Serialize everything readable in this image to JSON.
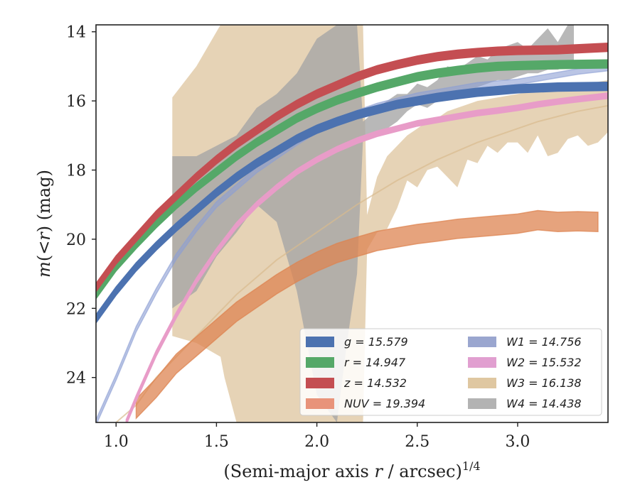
{
  "chart_data": {
    "type": "line",
    "xlabel": "(Semi-major axis r / arcsec)^1/4",
    "ylabel": "m(< r) (mag)",
    "xlim": [
      0.9,
      3.45
    ],
    "ylim": [
      25.3,
      13.8
    ],
    "y_inverted": true,
    "xticks": [
      1.0,
      1.5,
      2.0,
      2.5,
      3.0
    ],
    "xtick_labels": [
      "1.0",
      "1.5",
      "2.0",
      "2.5",
      "3.0"
    ],
    "yticks": [
      14,
      16,
      18,
      20,
      22,
      24
    ],
    "ytick_labels": [
      "14",
      "16",
      "18",
      "20",
      "22",
      "24"
    ],
    "grid": false,
    "legend_position": "bottom-right",
    "series": [
      {
        "name": "g = 15.579",
        "color": "#4c72b0",
        "total": 15.579,
        "x_start": 0.9,
        "x_end": 3.45,
        "alpha": 1.0,
        "band": 0.12,
        "x": [
          0.9,
          1.0,
          1.1,
          1.2,
          1.3,
          1.4,
          1.5,
          1.6,
          1.7,
          1.8,
          1.9,
          2.0,
          2.1,
          2.2,
          2.3,
          2.4,
          2.5,
          2.6,
          2.7,
          2.8,
          2.9,
          3.0,
          3.2,
          3.45
        ],
        "y": [
          22.3,
          21.5,
          20.8,
          20.2,
          19.65,
          19.15,
          18.65,
          18.2,
          17.8,
          17.45,
          17.1,
          16.82,
          16.6,
          16.4,
          16.25,
          16.1,
          16.0,
          15.9,
          15.82,
          15.75,
          15.7,
          15.65,
          15.6,
          15.58
        ]
      },
      {
        "name": "r = 14.947",
        "color": "#55a868",
        "total": 14.947,
        "x_start": 0.9,
        "x_end": 3.45,
        "alpha": 1.0,
        "band": 0.12,
        "x": [
          0.9,
          1.0,
          1.1,
          1.2,
          1.3,
          1.4,
          1.5,
          1.6,
          1.7,
          1.8,
          1.9,
          2.0,
          2.1,
          2.2,
          2.3,
          2.4,
          2.5,
          2.6,
          2.7,
          2.8,
          2.9,
          3.0,
          3.2,
          3.45
        ],
        "y": [
          21.6,
          20.8,
          20.15,
          19.55,
          19.0,
          18.5,
          18.05,
          17.6,
          17.2,
          16.85,
          16.5,
          16.22,
          15.98,
          15.78,
          15.6,
          15.45,
          15.3,
          15.2,
          15.12,
          15.05,
          15.0,
          14.98,
          14.95,
          14.93
        ]
      },
      {
        "name": "z = 14.532",
        "color": "#c44e52",
        "total": 14.532,
        "x_start": 0.9,
        "x_end": 3.45,
        "alpha": 1.0,
        "band": 0.12,
        "x": [
          0.9,
          1.0,
          1.1,
          1.2,
          1.3,
          1.4,
          1.5,
          1.6,
          1.7,
          1.8,
          1.9,
          2.0,
          2.1,
          2.2,
          2.3,
          2.4,
          2.5,
          2.6,
          2.7,
          2.8,
          2.9,
          3.0,
          3.2,
          3.45
        ],
        "y": [
          21.4,
          20.6,
          19.95,
          19.3,
          18.75,
          18.2,
          17.7,
          17.25,
          16.85,
          16.45,
          16.1,
          15.8,
          15.55,
          15.3,
          15.1,
          14.95,
          14.82,
          14.72,
          14.65,
          14.6,
          14.56,
          14.54,
          14.52,
          14.45
        ]
      },
      {
        "name": "NUV = 19.394",
        "color": "#dd8452",
        "total": 19.394,
        "x_start": 1.1,
        "x_end": 3.4,
        "alpha": 0.75,
        "band": 0.28,
        "x": [
          1.1,
          1.2,
          1.3,
          1.4,
          1.5,
          1.6,
          1.7,
          1.8,
          1.9,
          2.0,
          2.1,
          2.2,
          2.3,
          2.4,
          2.5,
          2.6,
          2.7,
          2.8,
          2.9,
          3.0,
          3.1,
          3.2,
          3.3,
          3.4
        ],
        "y": [
          24.9,
          24.3,
          23.6,
          23.1,
          22.6,
          22.1,
          21.7,
          21.3,
          20.95,
          20.65,
          20.4,
          20.22,
          20.05,
          19.95,
          19.85,
          19.78,
          19.7,
          19.65,
          19.6,
          19.55,
          19.45,
          19.5,
          19.48,
          19.5
        ]
      },
      {
        "name": "W1 = 14.756",
        "color": "#8c9ed4",
        "total": 14.756,
        "x_start": 0.9,
        "x_end": 3.45,
        "alpha": 0.6,
        "band": 0.08,
        "x": [
          0.9,
          1.0,
          1.1,
          1.2,
          1.3,
          1.4,
          1.5,
          1.6,
          1.7,
          1.8,
          1.9,
          2.0,
          2.1,
          2.2,
          2.3,
          2.4,
          2.5,
          2.6,
          2.7,
          2.8,
          2.9,
          3.0,
          3.1,
          3.2,
          3.3,
          3.45
        ],
        "y": [
          25.3,
          24.0,
          22.6,
          21.5,
          20.5,
          19.7,
          19.0,
          18.5,
          18.0,
          17.6,
          17.2,
          16.85,
          16.6,
          16.35,
          16.15,
          16.0,
          15.85,
          15.75,
          15.65,
          15.55,
          15.5,
          15.45,
          15.35,
          15.25,
          15.15,
          15.05
        ]
      },
      {
        "name": "W2 = 15.532",
        "color": "#e89cc8",
        "total": 15.532,
        "x_start": 0.9,
        "x_end": 3.45,
        "alpha": 1.0,
        "band": 0.08,
        "x": [
          1.05,
          1.1,
          1.2,
          1.3,
          1.4,
          1.5,
          1.6,
          1.7,
          1.8,
          1.9,
          2.0,
          2.1,
          2.2,
          2.3,
          2.4,
          2.5,
          2.6,
          2.7,
          2.8,
          2.9,
          3.0,
          3.1,
          3.2,
          3.3,
          3.45
        ],
        "y": [
          25.3,
          24.6,
          23.3,
          22.2,
          21.2,
          20.35,
          19.6,
          19.0,
          18.5,
          18.05,
          17.7,
          17.4,
          17.15,
          16.95,
          16.8,
          16.65,
          16.55,
          16.45,
          16.35,
          16.28,
          16.2,
          16.1,
          16.02,
          15.95,
          15.85
        ]
      },
      {
        "name": "W3 = 16.138",
        "color": "#d9bb8f",
        "total": 16.138,
        "x_start": 0.9,
        "x_end": 3.45,
        "alpha": 0.65,
        "band": 0.0,
        "band_x": [
          1.28,
          1.4,
          1.52,
          1.54,
          1.6,
          1.7,
          1.8,
          1.82,
          1.9,
          2.0,
          2.1,
          2.2,
          2.23,
          2.25,
          2.3,
          2.35,
          2.4,
          2.45,
          2.5,
          2.55,
          2.6,
          2.65,
          2.7,
          2.75,
          2.8,
          2.85,
          2.9,
          2.95,
          3.0,
          3.05,
          3.1,
          3.15,
          3.2,
          3.25,
          3.3,
          3.35,
          3.4,
          3.45
        ],
        "band_upper": [
          15.9,
          15.0,
          13.8,
          13.8,
          13.8,
          13.8,
          13.8,
          13.8,
          13.8,
          13.8,
          13.8,
          13.8,
          13.8,
          19.3,
          18.2,
          17.6,
          17.3,
          17.0,
          16.8,
          16.6,
          16.5,
          16.3,
          16.2,
          16.1,
          16.0,
          15.95,
          15.9,
          15.85,
          15.8,
          15.75,
          15.7,
          15.65,
          15.6,
          15.55,
          15.5,
          15.5,
          15.45,
          15.4
        ],
        "band_lower": [
          22.8,
          23.0,
          23.4,
          24.0,
          25.3,
          25.3,
          25.3,
          25.3,
          25.3,
          25.3,
          25.3,
          25.3,
          25.3,
          20.3,
          19.8,
          19.7,
          19.1,
          18.3,
          18.5,
          18.0,
          17.9,
          18.2,
          18.5,
          17.7,
          17.8,
          17.3,
          17.5,
          17.2,
          17.2,
          17.5,
          17.0,
          17.6,
          17.5,
          17.1,
          17.0,
          17.3,
          17.2,
          16.9
        ],
        "x": [
          1.0,
          1.1,
          1.2,
          1.3,
          1.4,
          1.5,
          1.6,
          1.7,
          1.8,
          1.9,
          2.0,
          2.1,
          2.2,
          2.3,
          2.4,
          2.5,
          2.6,
          2.7,
          2.8,
          2.9,
          3.0,
          3.1,
          3.2,
          3.3,
          3.45
        ],
        "y": [
          25.3,
          24.8,
          24.0,
          23.4,
          22.8,
          22.2,
          21.6,
          21.1,
          20.6,
          20.2,
          19.8,
          19.4,
          19.0,
          18.65,
          18.3,
          18.0,
          17.7,
          17.45,
          17.2,
          17.0,
          16.8,
          16.6,
          16.45,
          16.3,
          16.14
        ]
      },
      {
        "name": "W4 = 14.438",
        "color": "#a6a6a6",
        "total": 14.438,
        "x_start": 1.28,
        "x_end": 3.28,
        "alpha": 0.8,
        "band": 0.0,
        "band_x": [
          1.28,
          1.4,
          1.5,
          1.6,
          1.7,
          1.8,
          1.9,
          2.0,
          2.1,
          2.15,
          2.2,
          2.23,
          2.25,
          2.3,
          2.35,
          2.4,
          2.45,
          2.5,
          2.55,
          2.6,
          2.65,
          2.7,
          2.75,
          2.8,
          2.85,
          2.9,
          2.95,
          3.0,
          3.05,
          3.1,
          3.15,
          3.2,
          3.25,
          3.28
        ],
        "band_upper": [
          17.6,
          17.6,
          17.3,
          17.0,
          16.2,
          15.8,
          15.2,
          14.2,
          13.8,
          13.8,
          13.8,
          16.6,
          16.5,
          16.2,
          16.0,
          15.8,
          15.8,
          15.5,
          15.6,
          15.4,
          15.0,
          15.1,
          14.9,
          14.7,
          14.8,
          14.5,
          14.4,
          14.3,
          14.5,
          14.2,
          13.9,
          14.3,
          13.8,
          13.8
        ],
        "band_lower": [
          22.0,
          21.5,
          20.5,
          19.8,
          19.0,
          19.5,
          21.5,
          24.5,
          25.3,
          23.0,
          21.0,
          17.1,
          17.0,
          16.9,
          16.8,
          16.6,
          16.3,
          16.1,
          16.2,
          16.0,
          15.9,
          15.8,
          15.7,
          15.6,
          15.5,
          15.4,
          15.4,
          15.3,
          15.2,
          15.2,
          15.1,
          15.1,
          15.0,
          15.0
        ],
        "x": [],
        "y": []
      }
    ]
  }
}
